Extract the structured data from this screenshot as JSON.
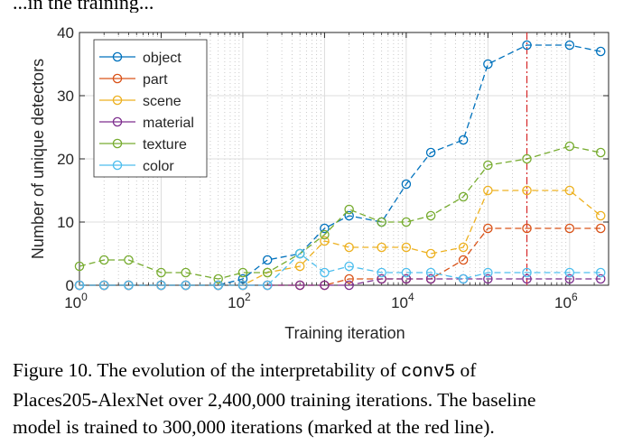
{
  "top_fragment": "...in the training...",
  "chart_data": {
    "type": "line",
    "title": "",
    "xlabel": "Training iteration",
    "ylabel": "Number of unique detectors",
    "xscale": "log",
    "xlim": [
      1,
      3000000
    ],
    "ylim": [
      0,
      40
    ],
    "yticks": [
      0,
      10,
      20,
      30,
      40
    ],
    "xtick_labels": [
      {
        "value": 1,
        "base": "10",
        "exp": "0"
      },
      {
        "value": 100,
        "base": "10",
        "exp": "2"
      },
      {
        "value": 10000,
        "base": "10",
        "exp": "4"
      },
      {
        "value": 1000000,
        "base": "10",
        "exp": "6"
      }
    ],
    "grid": true,
    "legend_position": "top-left",
    "baseline_marker": {
      "x": 300000,
      "color": "#d62728",
      "style": "dash-dot"
    },
    "x": [
      1,
      2,
      4,
      10,
      20,
      50,
      100,
      200,
      500,
      1000,
      2000,
      5000,
      10000,
      20000,
      50000,
      100000,
      300000,
      1000000,
      2400000
    ],
    "series": [
      {
        "name": "object",
        "color": "#0072bd",
        "values": [
          0,
          0,
          0,
          0,
          0,
          0,
          1,
          4,
          5,
          9,
          11,
          10,
          16,
          21,
          23,
          35,
          38,
          38,
          37
        ]
      },
      {
        "name": "part",
        "color": "#d95319",
        "values": [
          0,
          0,
          0,
          0,
          0,
          0,
          0,
          0,
          0,
          0,
          1,
          1,
          1,
          1,
          4,
          9,
          9,
          9,
          9
        ]
      },
      {
        "name": "scene",
        "color": "#edb120",
        "values": [
          0,
          0,
          0,
          0,
          0,
          0,
          0,
          2,
          3,
          7,
          6,
          6,
          6,
          5,
          6,
          15,
          15,
          15,
          11
        ]
      },
      {
        "name": "material",
        "color": "#7e2f8e",
        "values": [
          0,
          0,
          0,
          0,
          0,
          0,
          0,
          0,
          0,
          0,
          0,
          1,
          1,
          1,
          1,
          1,
          1,
          1,
          1
        ]
      },
      {
        "name": "texture",
        "color": "#77ac30",
        "values": [
          3,
          4,
          4,
          2,
          2,
          1,
          2,
          2,
          5,
          8,
          12,
          10,
          10,
          11,
          14,
          19,
          20,
          22,
          21
        ]
      },
      {
        "name": "color",
        "color": "#4dbeee",
        "values": [
          0,
          0,
          0,
          0,
          0,
          0,
          0,
          0,
          5,
          2,
          3,
          2,
          2,
          2,
          1,
          2,
          2,
          2,
          2
        ]
      }
    ]
  },
  "caption": {
    "line1_a": "Figure 10. The evolution of the interpretability of ",
    "line1_code": "conv5",
    "line1_b": " of",
    "line2": "Places205-AlexNet over 2,400,000 training iterations. The baseline",
    "line3": "model is trained to 300,000 iterations (marked at the red line)."
  }
}
